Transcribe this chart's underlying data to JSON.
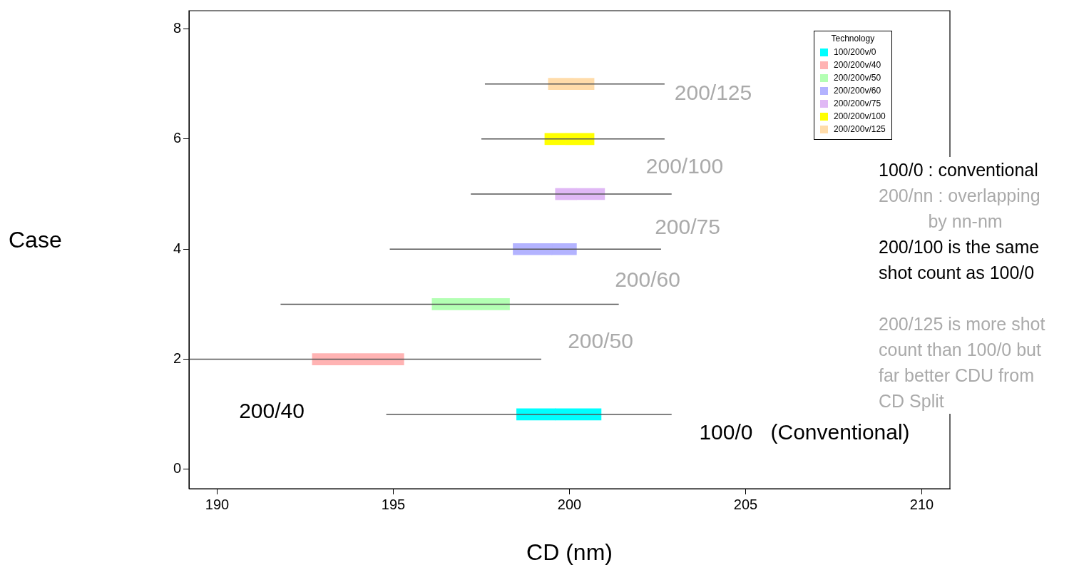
{
  "chart_data": {
    "type": "box",
    "orientation": "horizontal",
    "xlabel": "CD (nm)",
    "ylabel": "Case",
    "legend_title": "Technology",
    "legend": "top right",
    "grid": false,
    "x": [
      1,
      2,
      3,
      4,
      5,
      6,
      7
    ],
    "xlim": [
      189.2,
      210.8
    ],
    "xticks": [
      190,
      195,
      200,
      205,
      210
    ],
    "ylim": [
      -0.35,
      8.33
    ],
    "yticks": [
      0,
      2,
      4,
      6,
      8
    ],
    "series": [
      {
        "name": "100/200v/0",
        "color": "#00ffff",
        "boxes": [
          {
            "low": 194.8,
            "q1": 198.5,
            "median": 199.6,
            "q3": 200.9,
            "high": 202.9
          },
          null,
          null,
          null,
          null,
          null,
          null
        ]
      },
      {
        "name": "200/200v/40",
        "color": "#ffb3b3",
        "boxes": [
          null,
          {
            "low": 189.2,
            "q1": 192.7,
            "median": 193.9,
            "q3": 195.3,
            "high": 199.2
          },
          null,
          null,
          null,
          null,
          null
        ]
      },
      {
        "name": "200/200v/50",
        "color": "#b3ffb3",
        "boxes": [
          null,
          null,
          {
            "low": 191.8,
            "q1": 196.1,
            "median": 197.5,
            "q3": 198.3,
            "high": 201.4
          },
          null,
          null,
          null,
          null
        ]
      },
      {
        "name": "200/200v/60",
        "color": "#b3b3ff",
        "boxes": [
          null,
          null,
          null,
          {
            "low": 194.9,
            "q1": 198.4,
            "median": 199.5,
            "q3": 200.2,
            "high": 202.6
          },
          null,
          null,
          null
        ]
      },
      {
        "name": "200/200v/75",
        "color": "#e0b8f5",
        "boxes": [
          null,
          null,
          null,
          null,
          {
            "low": 197.2,
            "q1": 199.6,
            "median": 200.2,
            "q3": 201.0,
            "high": 202.9
          },
          null,
          null
        ]
      },
      {
        "name": "200/200v/100",
        "color": "#ffff00",
        "boxes": [
          null,
          null,
          null,
          null,
          null,
          {
            "low": 197.5,
            "q1": 199.3,
            "median": 199.9,
            "q3": 200.7,
            "high": 202.7
          },
          null
        ]
      },
      {
        "name": "200/200v/125",
        "color": "#ffdcaa",
        "boxes": [
          null,
          null,
          null,
          null,
          null,
          null,
          {
            "low": 197.6,
            "q1": 199.4,
            "median": 200.1,
            "q3": 200.7,
            "high": 202.7
          }
        ]
      }
    ],
    "annotations": [
      "200/125",
      "200/100",
      "200/75",
      "200/60",
      "200/50",
      "200/40",
      "100/0   (Conventional)",
      "100/0 : conventional",
      "200/nn : overlapping\n          by nn-nm",
      "200/100 is the same\nshot count as 100/0",
      "\n200/125 is more shot\ncount than 100/0 but\nfar better CDU from\nCD Split"
    ]
  }
}
